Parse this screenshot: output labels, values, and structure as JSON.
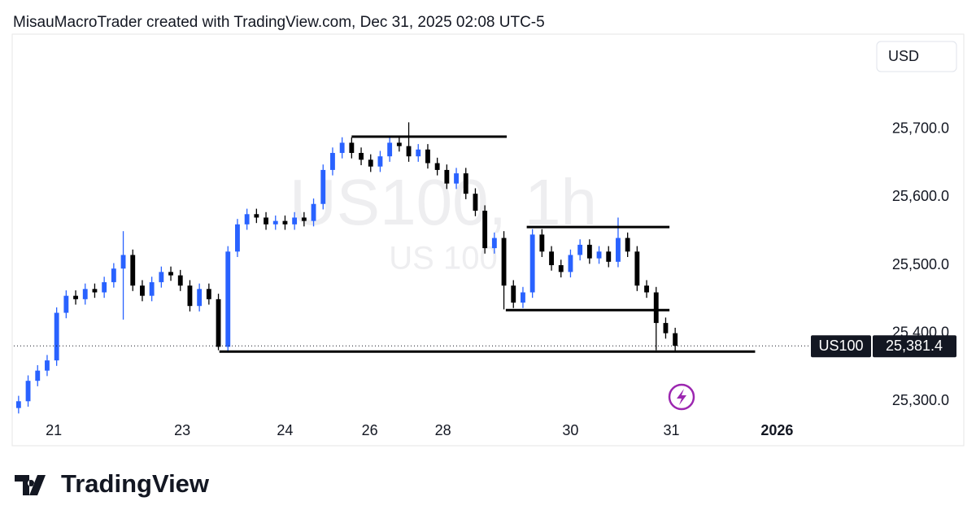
{
  "header": "MisauMacroTrader created with TradingView.com, Dec 31, 2025 02:08 UTC-5",
  "currency": "USD",
  "brand": "TradingView",
  "chart_data": {
    "type": "candlestick",
    "watermark": "US100, 1h",
    "watermark_sub": "US 100",
    "symbol": "US100",
    "up_color": "#2962ff",
    "down_color": "#000000",
    "x": [
      0,
      1,
      2,
      3,
      4,
      5,
      6,
      7,
      8,
      9,
      10,
      11,
      12,
      13,
      14,
      15,
      16,
      17,
      18,
      19,
      20,
      21,
      22,
      23,
      24,
      25,
      26,
      27,
      28,
      29,
      30,
      31,
      32,
      33,
      34,
      35,
      36,
      37,
      38,
      39,
      40,
      41,
      42,
      43,
      44,
      45,
      46,
      47,
      48,
      49,
      50,
      51,
      52,
      53,
      54,
      55,
      56,
      57,
      58,
      59,
      60,
      61,
      62,
      63,
      64,
      65,
      66,
      67,
      68,
      69
    ],
    "open": [
      25290,
      25300,
      25330,
      25345,
      25360,
      25430,
      25455,
      25450,
      25465,
      25460,
      25475,
      25495,
      25515,
      25470,
      25455,
      25475,
      25490,
      25485,
      25470,
      25440,
      25465,
      25450,
      25380,
      25520,
      25560,
      25575,
      25570,
      25560,
      25565,
      25560,
      25570,
      25565,
      25590,
      25640,
      25665,
      25680,
      25665,
      25655,
      25645,
      25660,
      25680,
      25675,
      25660,
      25670,
      25650,
      25640,
      25620,
      25635,
      25605,
      25580,
      25525,
      25540,
      25470,
      25445,
      25460,
      25545,
      25520,
      25500,
      25490,
      25515,
      25530,
      25510,
      25520,
      25505,
      25540,
      25520,
      25470,
      25460,
      25415,
      25400
    ],
    "high": [
      25308,
      25338,
      25353,
      25368,
      25438,
      25463,
      25463,
      25473,
      25473,
      25483,
      25503,
      25550,
      25523,
      25478,
      25483,
      25498,
      25498,
      25493,
      25478,
      25473,
      25473,
      25458,
      25528,
      25568,
      25583,
      25583,
      25578,
      25573,
      25573,
      25578,
      25578,
      25598,
      25648,
      25673,
      25688,
      25688,
      25673,
      25663,
      25668,
      25688,
      25688,
      25710,
      25678,
      25678,
      25658,
      25648,
      25643,
      25643,
      25613,
      25588,
      25548,
      25550,
      25478,
      25468,
      25553,
      25553,
      25528,
      25508,
      25523,
      25538,
      25538,
      25528,
      25528,
      25570,
      25548,
      25528,
      25478,
      25468,
      25423,
      25408
    ],
    "low": [
      25282,
      25292,
      25322,
      25337,
      25352,
      25422,
      25442,
      25442,
      25452,
      25452,
      25467,
      25420,
      25462,
      25447,
      25447,
      25467,
      25477,
      25462,
      25432,
      25432,
      25442,
      25375,
      25372,
      25512,
      25552,
      25562,
      25552,
      25552,
      25552,
      25552,
      25557,
      25557,
      25582,
      25632,
      25657,
      25657,
      25647,
      25637,
      25637,
      25652,
      25667,
      25652,
      25652,
      25642,
      25632,
      25612,
      25612,
      25597,
      25572,
      25517,
      25517,
      25435,
      25437,
      25437,
      25452,
      25512,
      25492,
      25482,
      25482,
      25507,
      25502,
      25502,
      25497,
      25497,
      25512,
      25462,
      25452,
      25375,
      25392,
      25372
    ],
    "close": [
      25300,
      25330,
      25345,
      25360,
      25430,
      25455,
      25450,
      25465,
      25460,
      25475,
      25495,
      25515,
      25470,
      25455,
      25475,
      25490,
      25485,
      25470,
      25440,
      25465,
      25450,
      25380,
      25520,
      25560,
      25575,
      25570,
      25560,
      25565,
      25560,
      25570,
      25565,
      25590,
      25640,
      25665,
      25680,
      25665,
      25655,
      25645,
      25660,
      25680,
      25675,
      25660,
      25670,
      25650,
      25640,
      25620,
      25635,
      25605,
      25580,
      25525,
      25540,
      25470,
      25445,
      25460,
      25545,
      25520,
      25500,
      25490,
      25515,
      25530,
      25510,
      25520,
      25505,
      25540,
      25520,
      25470,
      25460,
      25415,
      25400,
      25381.4
    ],
    "last_price": {
      "value": 25381.4,
      "label": "25,381.4"
    },
    "levels": [
      {
        "y": 25689,
        "x": [
          35,
          51.3
        ]
      },
      {
        "y": 25556,
        "x": [
          53.4,
          68.4
        ]
      },
      {
        "y": 25434,
        "x": [
          51.2,
          68.4
        ]
      },
      {
        "y": 25373,
        "x": [
          21.1,
          77.4
        ]
      }
    ],
    "xlim": [
      -0.5,
      89.5
    ],
    "ylim": [
      25286,
      25836
    ],
    "xticks": [
      {
        "value": 3.7,
        "label": "21"
      },
      {
        "value": 17.2,
        "label": "23"
      },
      {
        "value": 28,
        "label": "24"
      },
      {
        "value": 36.9,
        "label": "26"
      },
      {
        "value": 44.6,
        "label": "28"
      },
      {
        "value": 58,
        "label": "30"
      },
      {
        "value": 68.6,
        "label": "31"
      },
      {
        "value": 79.7,
        "label": "2026"
      }
    ],
    "yticks": [
      {
        "value": 25300,
        "label": "25,300.0"
      },
      {
        "value": 25400,
        "label": "25,400.0"
      },
      {
        "value": 25500,
        "label": "25,500.0"
      },
      {
        "value": 25600,
        "label": "25,600.0"
      },
      {
        "value": 25700,
        "label": "25,700.0"
      }
    ]
  }
}
